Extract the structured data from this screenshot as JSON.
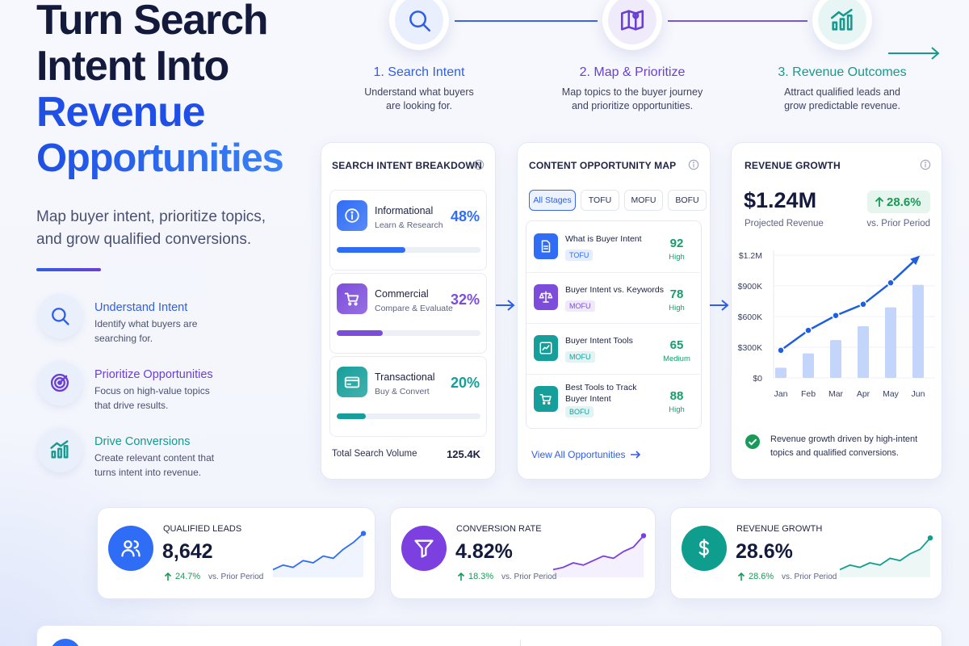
{
  "header": {
    "title_lines": [
      "Turn Search",
      "Intent Into"
    ],
    "highlight_lines": [
      "Revenue",
      "Opportunities"
    ],
    "subtitle_lines": [
      "Map buyer intent, prioritize topics,",
      "and grow qualified conversions."
    ]
  },
  "features": [
    {
      "title": "Understand Intent",
      "desc_lines": [
        "Identify what buyers are",
        "searching for."
      ],
      "color": "#2f5ee8"
    },
    {
      "title": "Prioritize Opportunities",
      "desc_lines": [
        "Focus on high-value topics",
        "that drive results."
      ],
      "color": "#6a3fd6"
    },
    {
      "title": "Drive Conversions",
      "desc_lines": [
        "Create relevant content that",
        "turns intent into revenue."
      ],
      "color": "#16998f"
    }
  ],
  "steps": [
    {
      "title": "1. Search Intent",
      "desc_lines": [
        "Understand what buyers",
        "are looking for."
      ],
      "color": "#2f5ee8"
    },
    {
      "title": "2. Map & Prioritize",
      "desc_lines": [
        "Map topics to the buyer journey",
        "and prioritize opportunities."
      ],
      "color": "#6a3fd6"
    },
    {
      "title": "3. Revenue Outcomes",
      "desc_lines": [
        "Attract qualified leads and",
        "grow predictable revenue."
      ],
      "color": "#16998f"
    }
  ],
  "intent_card": {
    "title": "SEARCH INTENT BREAKDOWN",
    "items": [
      {
        "name": "Informational",
        "desc": "Learn & Research",
        "value": 48,
        "label": "48%",
        "color": "#2f6df6"
      },
      {
        "name": "Commercial",
        "desc": "Compare & Evaluate",
        "value": 32,
        "label": "32%",
        "color": "#7c4ddb"
      },
      {
        "name": "Transactional",
        "desc": "Buy & Convert",
        "value": 20,
        "label": "20%",
        "color": "#159e9a"
      }
    ],
    "total_label": "Total Search Volume",
    "total_value": "125.4K"
  },
  "opportunity_card": {
    "title": "CONTENT OPPORTUNITY MAP",
    "filters": [
      "All Stages",
      "TOFU",
      "MOFU",
      "BOFU"
    ],
    "active_filter": 0,
    "items": [
      {
        "title_lines": [
          "What is Buyer Intent"
        ],
        "stage": "TOFU",
        "score": 92,
        "level": "High",
        "color": "#2f6df6"
      },
      {
        "title_lines": [
          "Buyer Intent vs. Keywords"
        ],
        "stage": "MOFU",
        "score": 78,
        "level": "High",
        "color": "#7c4ddb"
      },
      {
        "title_lines": [
          "Buyer Intent Tools"
        ],
        "stage": "MOFU",
        "score": 65,
        "level": "Medium",
        "color": "#159e9a"
      },
      {
        "title_lines": [
          "Best Tools to Track",
          "Buyer Intent"
        ],
        "stage": "BOFU",
        "score": 88,
        "level": "High",
        "color": "#159e9a"
      }
    ],
    "link": "View All Opportunities"
  },
  "revenue_card": {
    "title": "REVENUE GROWTH",
    "amount": "$1.24M",
    "amount_label": "Projected Revenue",
    "change": "28.6%",
    "change_label": "vs. Prior Period",
    "note_lines": [
      "Revenue growth driven by high-intent",
      "topics and qualified conversions."
    ]
  },
  "chart_data": {
    "type": "bar-line",
    "categories": [
      "Jan",
      "Feb",
      "Mar",
      "Apr",
      "May",
      "Jun"
    ],
    "series": [
      {
        "type": "bar",
        "color": "#c3d5fb",
        "values": [
          100000,
          240000,
          370000,
          505000,
          690000,
          910000
        ]
      },
      {
        "type": "line",
        "color": "#1d5fe0",
        "values": [
          270000,
          465000,
          610000,
          720000,
          930000,
          1180000
        ]
      }
    ],
    "ylim": [
      0,
      1200000
    ],
    "yticks": [
      {
        "value": 0,
        "label": "$0"
      },
      {
        "value": 300000,
        "label": "$300K"
      },
      {
        "value": 600000,
        "label": "$600K"
      },
      {
        "value": 900000,
        "label": "$900K"
      },
      {
        "value": 1200000,
        "label": "$1.2M"
      }
    ],
    "grid": true
  },
  "kpis": [
    {
      "title": "QUALIFIED LEADS",
      "value": "8,642",
      "change": "24.7%",
      "change_label": "vs. Prior Period",
      "color": "#2f6df6",
      "ylim": [
        0,
        10
      ],
      "sparkline": [
        1,
        2,
        1.5,
        3,
        2.5,
        4,
        3.5,
        5.5,
        7,
        9
      ]
    },
    {
      "title": "CONVERSION RATE",
      "value": "4.82%",
      "change": "18.3%",
      "change_label": "vs. Prior Period",
      "color": "#7c3fe0",
      "ylim": [
        0,
        10
      ],
      "sparkline": [
        1,
        1.5,
        2.5,
        2,
        3,
        4,
        3.5,
        5,
        6,
        8.5
      ]
    },
    {
      "title": "REVENUE GROWTH",
      "value": "28.6%",
      "change": "28.6%",
      "change_label": "vs. Prior Period",
      "color": "#0f9e8e",
      "ylim": [
        0,
        10
      ],
      "sparkline": [
        1,
        2,
        1.5,
        2.5,
        2,
        3.5,
        3,
        4.5,
        5.5,
        8
      ]
    }
  ]
}
